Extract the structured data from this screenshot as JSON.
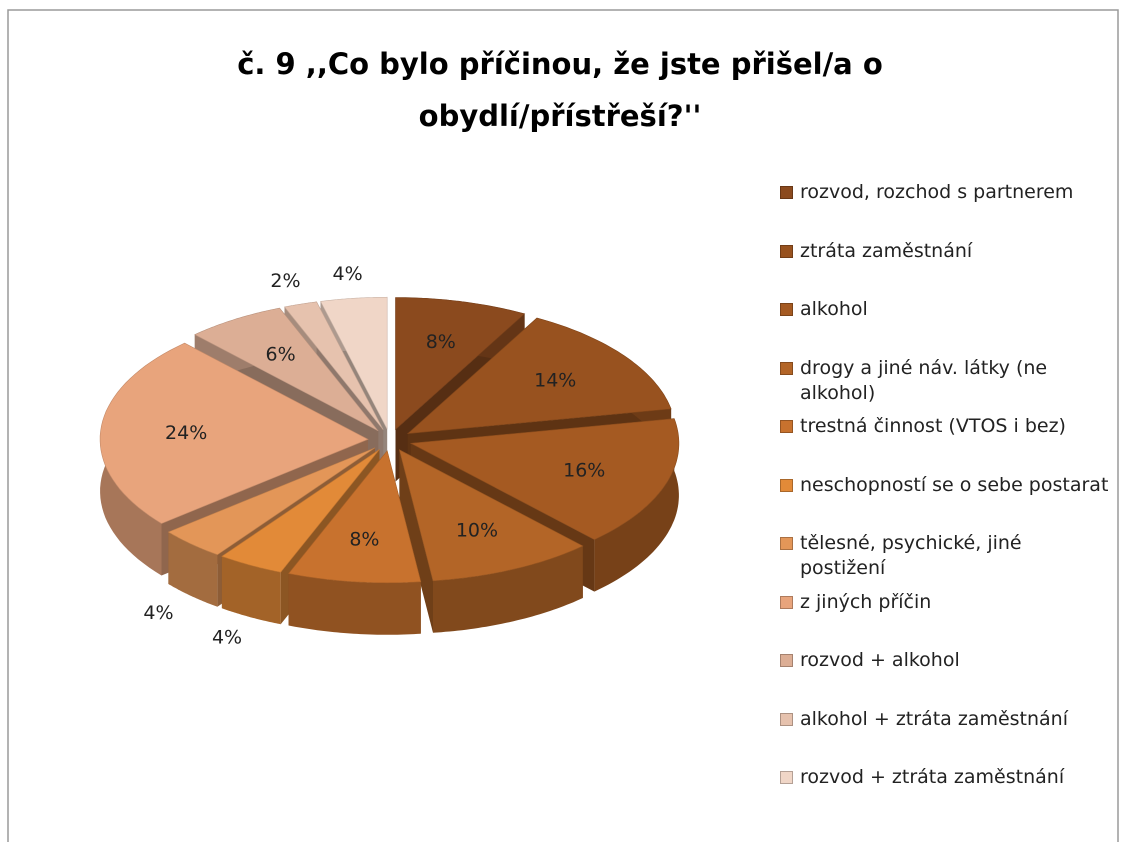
{
  "chart_data": {
    "type": "pie",
    "title": "č. 9  ,,Co bylo příčinou, že jste přišel/a o obydlí/přístřeší?''",
    "categories": [
      "rozvod, rozchod s partnerem",
      "ztráta zaměstnání",
      "alkohol",
      "drogy a jiné náv. látky (ne alkohol)",
      "trestná činnost (VTOS i bez)",
      "neschopností se o sebe postarat",
      "tělesné, psychické, jiné postižení",
      "z jiných příčin",
      "rozvod + alkohol",
      "alkohol + ztráta zaměstnání",
      "rozvod + ztráta zaměstnání"
    ],
    "values": [
      8,
      14,
      16,
      10,
      8,
      4,
      4,
      24,
      6,
      2,
      4
    ],
    "value_labels": [
      "8%",
      "14%",
      "16%",
      "10%",
      "8%",
      "4%",
      "4%",
      "24%",
      "6%",
      "2%",
      "4%"
    ],
    "colors": [
      "#8b4a1e",
      "#98521f",
      "#a55a22",
      "#b36527",
      "#c8722e",
      "#e28a38",
      "#e39658",
      "#e8a47c",
      "#dcae95",
      "#e6c2ae",
      "#f0d6c7"
    ],
    "legend": "right"
  }
}
